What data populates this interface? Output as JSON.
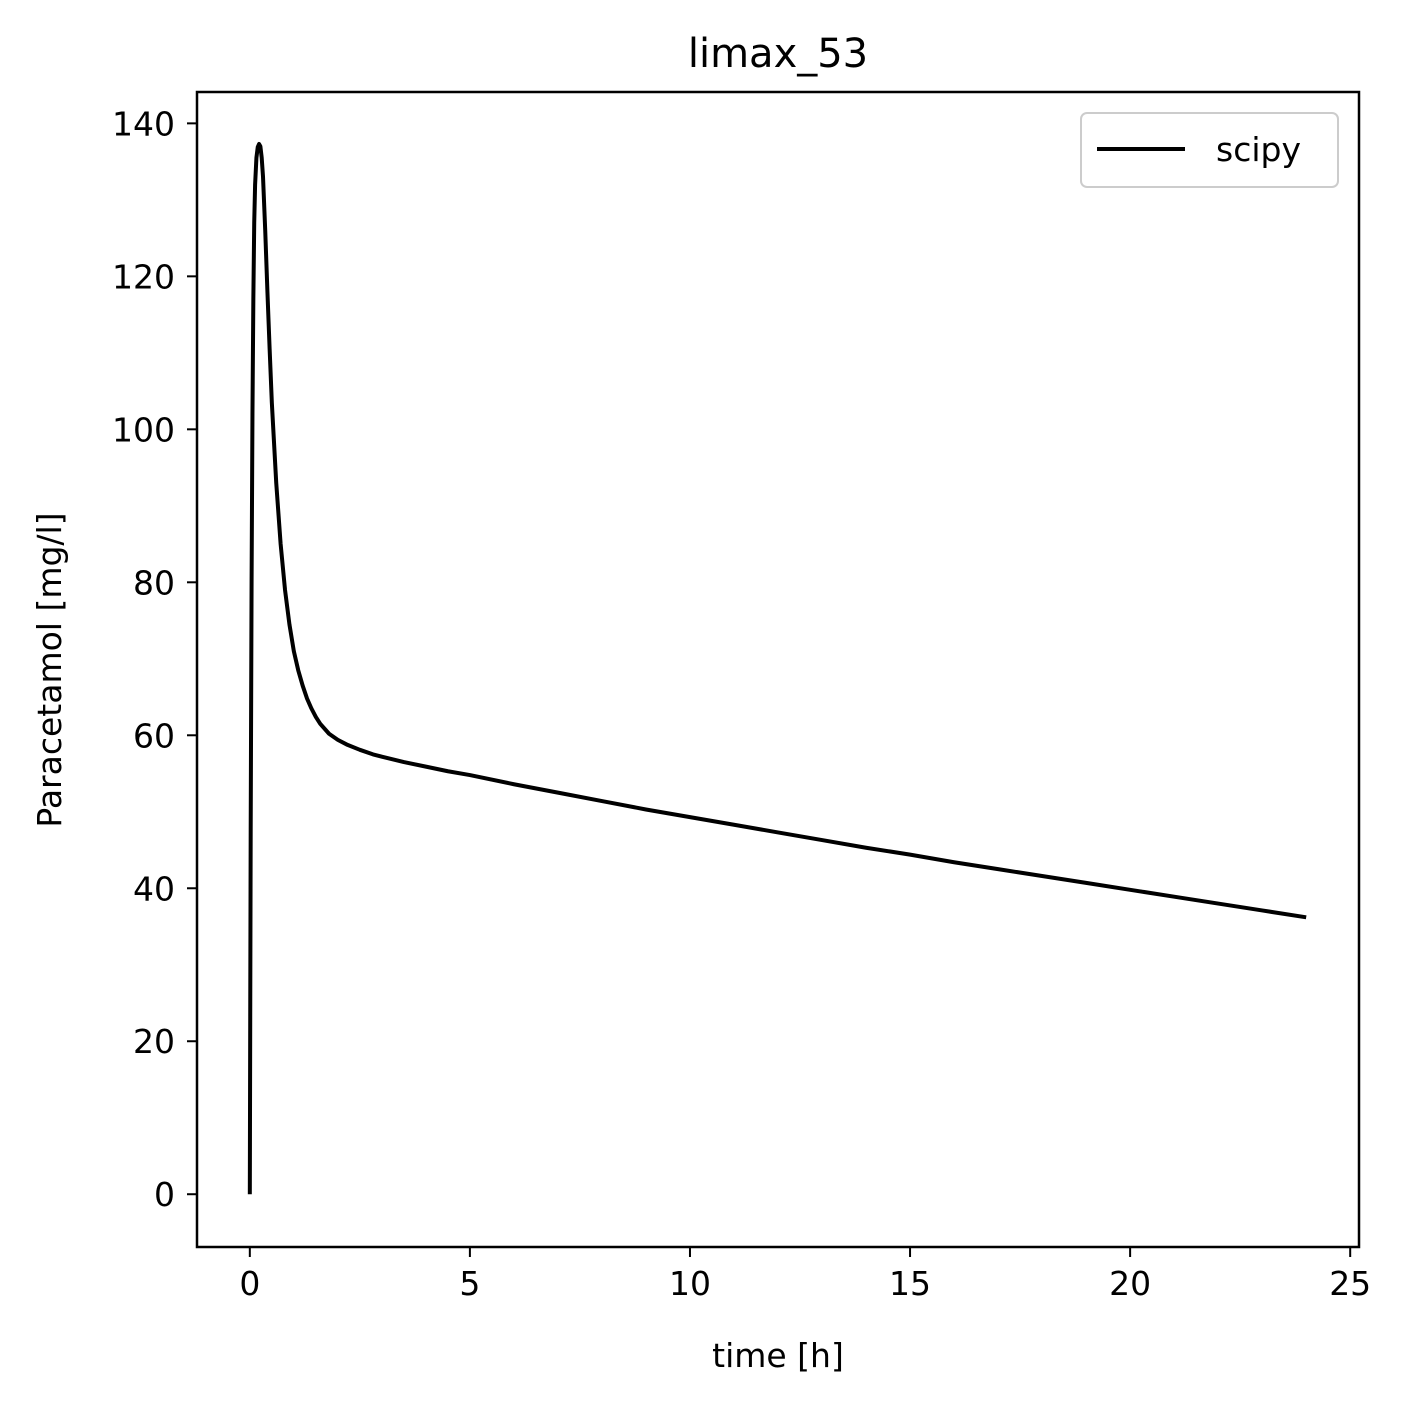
{
  "chart_data": {
    "type": "line",
    "title": "limax_53",
    "xlabel": "time [h]",
    "ylabel": "Paracetamol [mg/l]",
    "xlim": [
      -1.2,
      25.2
    ],
    "ylim": [
      -6.9,
      144.1
    ],
    "xticks": [
      0,
      5,
      10,
      15,
      20,
      25
    ],
    "yticks": [
      0,
      20,
      40,
      60,
      80,
      100,
      120,
      140
    ],
    "grid": false,
    "legend_position": "upper right",
    "series": [
      {
        "name": "scipy",
        "color": "#000000",
        "x": [
          0,
          0.01,
          0.02,
          0.04,
          0.06,
          0.08,
          0.1,
          0.12,
          0.15,
          0.18,
          0.21,
          0.24,
          0.27,
          0.3,
          0.35,
          0.4,
          0.45,
          0.5,
          0.6,
          0.7,
          0.8,
          0.9,
          1.0,
          1.1,
          1.2,
          1.3,
          1.4,
          1.5,
          1.6,
          1.8,
          2.0,
          2.2,
          2.5,
          2.8,
          3.0,
          3.5,
          4.0,
          4.5,
          5.0,
          6.0,
          7.0,
          8.0,
          9.0,
          10.0,
          11.0,
          12.0,
          13.0,
          14.0,
          15.0,
          16.0,
          17.0,
          18.0,
          19.0,
          20.0,
          21.0,
          22.0,
          23.0,
          24.0
        ],
        "y": [
          0,
          25,
          48,
          80,
          102,
          117,
          127,
          132,
          135.5,
          136.9,
          137.3,
          137,
          135.5,
          133,
          126,
          118,
          110.5,
          103.5,
          93,
          85,
          79,
          74.5,
          71,
          68.5,
          66.5,
          64.8,
          63.5,
          62.4,
          61.5,
          60.2,
          59.4,
          58.8,
          58.1,
          57.5,
          57.2,
          56.5,
          55.9,
          55.3,
          54.8,
          53.6,
          52.5,
          51.4,
          50.3,
          49.3,
          48.3,
          47.3,
          46.3,
          45.3,
          44.4,
          43.4,
          42.5,
          41.6,
          40.7,
          39.8,
          38.9,
          38.0,
          37.1,
          36.2
        ]
      }
    ]
  }
}
